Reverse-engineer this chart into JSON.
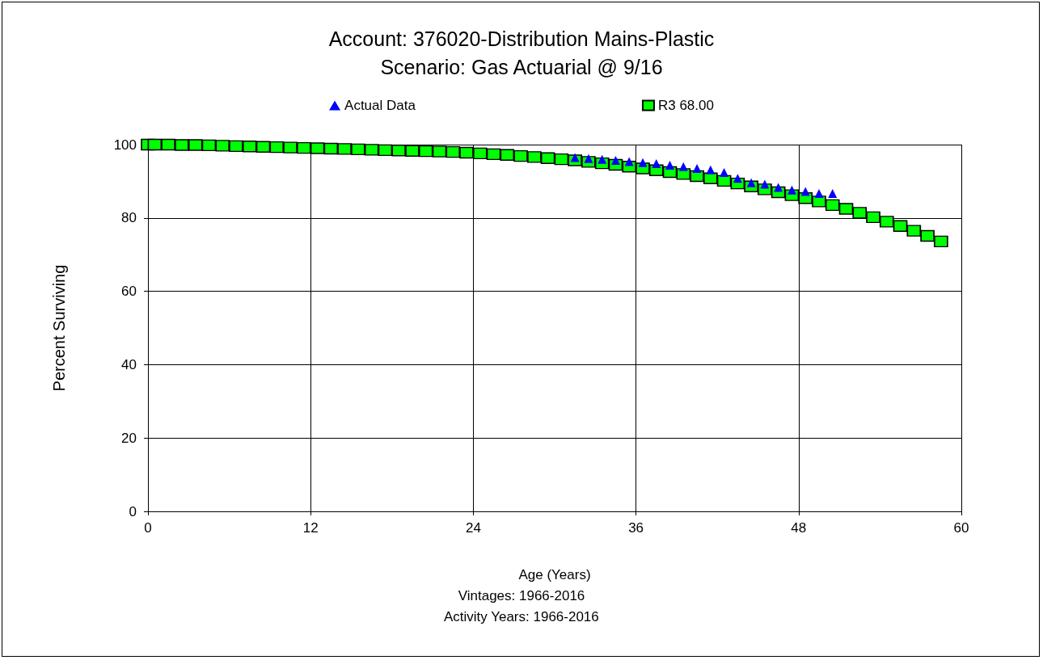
{
  "chart_data": {
    "type": "scatter",
    "title": "Account: 376020-Distribution Mains-Plastic",
    "subtitle": "Scenario: Gas Actuarial @ 9/16",
    "xlabel": "Age (Years)",
    "ylabel": "Percent Surviving",
    "annotations": [
      "Vintages: 1966-2016",
      "Activity Years: 1966-2016"
    ],
    "xlim": [
      0,
      60
    ],
    "xticks": [
      0,
      12,
      24,
      36,
      48,
      60
    ],
    "ylim": [
      0,
      100
    ],
    "yticks": [
      0,
      20,
      40,
      60,
      80,
      100
    ],
    "grid": true,
    "legend": "top",
    "series": [
      {
        "name": "Actual Data",
        "color": "#0000ff",
        "marker": "triangle",
        "x": [
          31.5,
          32.5,
          33.5,
          34.5,
          35.5,
          36.5,
          37.5,
          38.5,
          39.5,
          40.5,
          41.5,
          42.5,
          43.5,
          44.5,
          45.5,
          46.5,
          47.5,
          48.5,
          49.5,
          50.5
        ],
        "values": [
          96.5,
          96.2,
          96,
          95.7,
          95.4,
          95.1,
          94.8,
          94.4,
          94,
          93.5,
          93.1,
          92.4,
          90.8,
          89.6,
          89.2,
          88.3,
          87.6,
          87.2,
          86.7,
          86.7
        ]
      },
      {
        "name": "R3 68.00",
        "color": "#00ff00",
        "marker": "square",
        "x": [
          0,
          0.5,
          1.5,
          2.5,
          3.5,
          4.5,
          5.5,
          6.5,
          7.5,
          8.5,
          9.5,
          10.5,
          11.5,
          12.5,
          13.5,
          14.5,
          15.5,
          16.5,
          17.5,
          18.5,
          19.5,
          20.5,
          21.5,
          22.5,
          23.5,
          24.5,
          25.5,
          26.5,
          27.5,
          28.5,
          29.5,
          30.5,
          31.5,
          32.5,
          33.5,
          34.5,
          35.5,
          36.5,
          37.5,
          38.5,
          39.5,
          40.5,
          41.5,
          42.5,
          43.5,
          44.5,
          45.5,
          46.5,
          47.5,
          48.5,
          49.5,
          50.5,
          51.5,
          52.5,
          53.5,
          54.5,
          55.5,
          56.5,
          57.5,
          58.5
        ],
        "values": [
          100,
          100,
          100,
          99.9,
          99.9,
          99.8,
          99.7,
          99.6,
          99.5,
          99.4,
          99.3,
          99.2,
          99.1,
          99,
          98.9,
          98.8,
          98.7,
          98.6,
          98.5,
          98.4,
          98.3,
          98.2,
          98.1,
          98,
          97.8,
          97.6,
          97.4,
          97.2,
          96.9,
          96.6,
          96.3,
          96,
          95.7,
          95.3,
          94.9,
          94.5,
          94,
          93.5,
          93,
          92.5,
          92,
          91.4,
          90.8,
          90.1,
          89.4,
          88.6,
          87.8,
          87,
          86.2,
          85.4,
          84.5,
          83.5,
          82.5,
          81.4,
          80.2,
          79,
          77.8,
          76.5,
          75.1,
          73.6
        ]
      }
    ]
  }
}
